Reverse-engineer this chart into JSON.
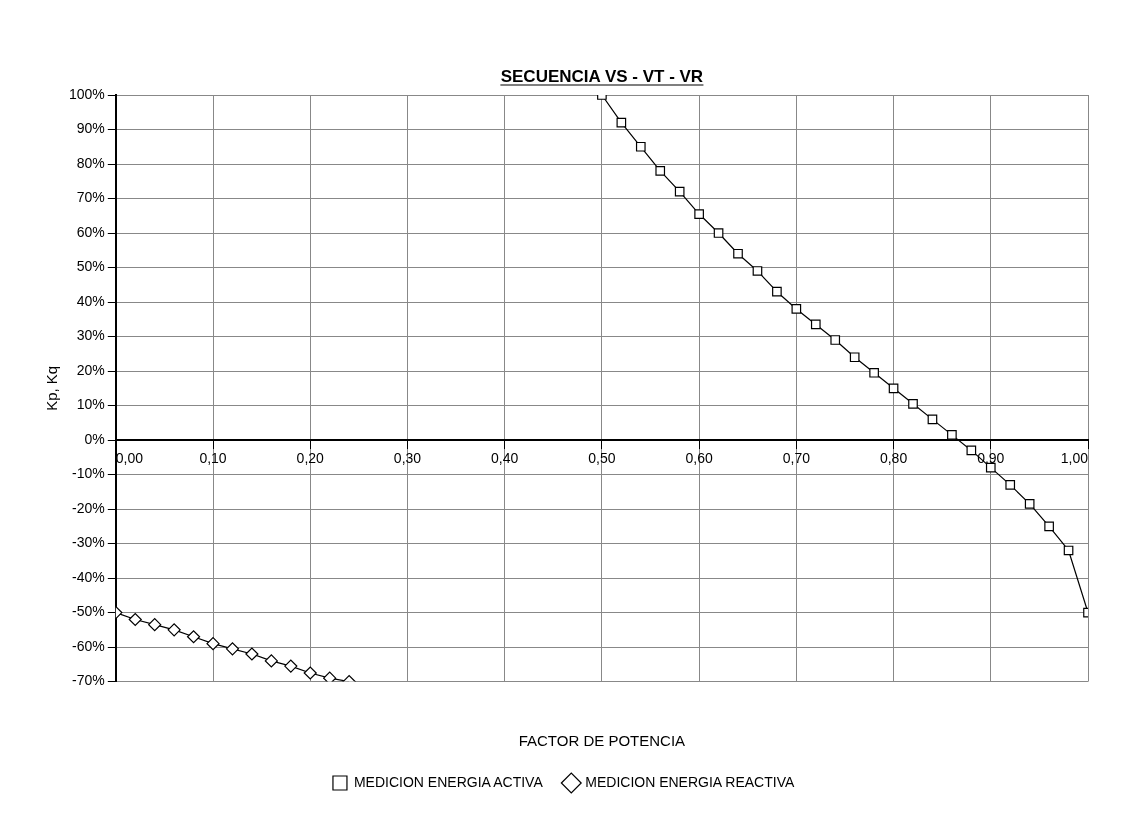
{
  "chart_data": {
    "type": "line",
    "title": "SECUENCIA VS - VT - VR",
    "xlabel": "FACTOR DE POTENCIA",
    "ylabel": "Kp, Kq",
    "series": [
      {
        "name": "MEDICION ENERGIA ACTIVA",
        "color": "#000000",
        "marker": "square",
        "x": [
          0.5,
          0.52,
          0.54,
          0.56,
          0.58,
          0.6,
          0.62,
          0.64,
          0.66,
          0.68,
          0.7,
          0.72,
          0.74,
          0.76,
          0.78,
          0.8,
          0.82,
          0.84,
          0.86,
          0.88,
          0.9,
          0.92,
          0.94,
          0.96,
          0.98,
          1.0
        ],
        "values": [
          100,
          92,
          85,
          78,
          72,
          65.5,
          60,
          54,
          49,
          43,
          38,
          33.5,
          29,
          24,
          19.5,
          15,
          10.5,
          6,
          1.5,
          -3,
          -8,
          -13,
          -18.5,
          -25,
          -32,
          -50
        ]
      },
      {
        "name": "MEDICION ENERGIA REACTIVA",
        "color": "#000000",
        "marker": "diamond",
        "x": [
          0,
          0.02,
          0.04,
          0.06,
          0.08,
          0.1,
          0.12,
          0.14,
          0.16,
          0.18,
          0.2,
          0.22,
          0.24
        ],
        "values": [
          -50,
          -52,
          -53.5,
          -55,
          -57,
          -59,
          -60.5,
          -62,
          -64,
          -65.5,
          -67.5,
          -69,
          -70
        ]
      }
    ],
    "xlim": [
      0,
      1
    ],
    "ylim": [
      -70,
      100
    ],
    "xticks": [
      {
        "value": 0,
        "label": "0,00"
      },
      {
        "value": 0.1,
        "label": "0,10"
      },
      {
        "value": 0.2,
        "label": "0,20"
      },
      {
        "value": 0.3,
        "label": "0,30"
      },
      {
        "value": 0.4,
        "label": "0,40"
      },
      {
        "value": 0.5,
        "label": "0,50"
      },
      {
        "value": 0.6,
        "label": "0,60"
      },
      {
        "value": 0.7,
        "label": "0,70"
      },
      {
        "value": 0.8,
        "label": "0,80"
      },
      {
        "value": 0.9,
        "label": "0,90"
      },
      {
        "value": 1,
        "label": "1,00"
      }
    ],
    "yticks": [
      {
        "value": -70,
        "label": "-70%"
      },
      {
        "value": -60,
        "label": "-60%"
      },
      {
        "value": -50,
        "label": "-50%"
      },
      {
        "value": -40,
        "label": "-40%"
      },
      {
        "value": -30,
        "label": "-30%"
      },
      {
        "value": -20,
        "label": "-20%"
      },
      {
        "value": -10,
        "label": "-10%"
      },
      {
        "value": 0,
        "label": "0%"
      },
      {
        "value": 10,
        "label": "10%"
      },
      {
        "value": 20,
        "label": "20%"
      },
      {
        "value": 30,
        "label": "30%"
      },
      {
        "value": 40,
        "label": "40%"
      },
      {
        "value": 50,
        "label": "50%"
      },
      {
        "value": 60,
        "label": "60%"
      },
      {
        "value": 70,
        "label": "70%"
      },
      {
        "value": 80,
        "label": "80%"
      },
      {
        "value": 90,
        "label": "90%"
      },
      {
        "value": 100,
        "label": "100%"
      }
    ],
    "grid": true,
    "legend": "bottom"
  }
}
